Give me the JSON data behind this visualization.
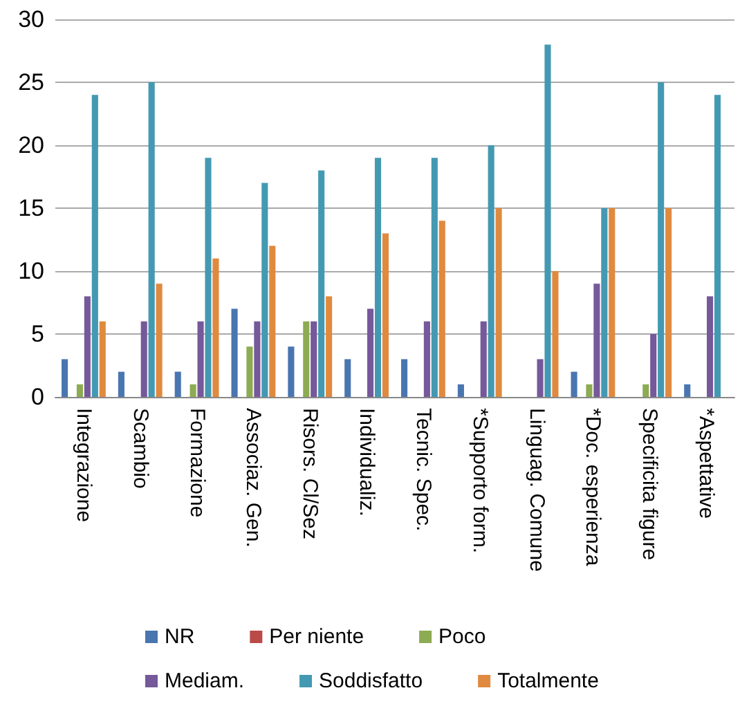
{
  "chart_data": {
    "type": "bar",
    "categories": [
      "Integrazione",
      "Scambio",
      "Formazione",
      "Associaz. Gen.",
      "Risors. Cl/Sez",
      "Individualiz.",
      "Tecnic. Spec.",
      "*Supporto form.",
      "Linguag. Comune",
      "*Doc. esperienza",
      "Specificita figure",
      "*Aspettative"
    ],
    "series": [
      {
        "name": "NR",
        "color": "#4a76b0",
        "values": [
          3,
          2,
          2,
          7,
          4,
          3,
          3,
          1,
          0,
          2,
          0,
          1
        ]
      },
      {
        "name": "Per niente",
        "color": "#b94a48",
        "values": [
          0,
          0,
          0,
          0,
          0,
          0,
          0,
          0,
          0,
          0,
          0,
          0
        ]
      },
      {
        "name": "Poco",
        "color": "#8dab52",
        "values": [
          1,
          0,
          1,
          4,
          6,
          0,
          0,
          0,
          0,
          1,
          1,
          0
        ]
      },
      {
        "name": "Mediam.",
        "color": "#75599a",
        "values": [
          8,
          6,
          6,
          6,
          6,
          7,
          6,
          6,
          3,
          9,
          5,
          8
        ]
      },
      {
        "name": "Soddisfatto",
        "color": "#4499b2",
        "values": [
          24,
          25,
          19,
          17,
          18,
          19,
          19,
          20,
          28,
          15,
          25,
          24
        ]
      },
      {
        "name": "Totalmente",
        "color": "#e08a3f",
        "values": [
          6,
          9,
          11,
          12,
          8,
          13,
          14,
          15,
          10,
          15,
          15,
          null
        ]
      }
    ],
    "ylim": [
      0,
      30
    ],
    "yticks": [
      0,
      5,
      10,
      15,
      20,
      25,
      30
    ],
    "grid": "y",
    "legend": "bottom"
  }
}
